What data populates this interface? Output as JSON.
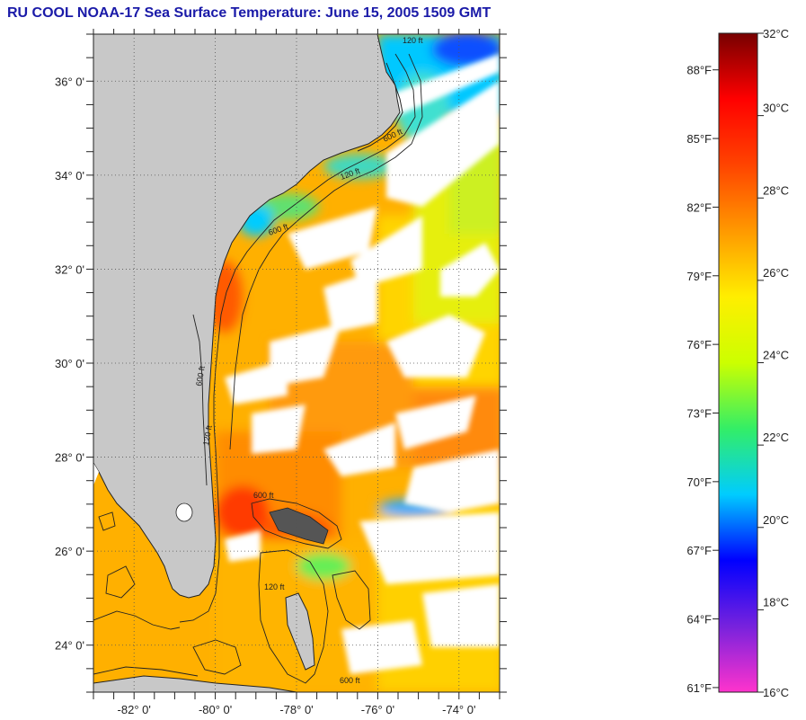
{
  "title": "RU COOL  NOAA-17  Sea Surface Temperature:  June 15, 2005 1509 GMT",
  "map": {
    "lon_range": [
      -83,
      -73
    ],
    "lat_range": [
      23,
      37
    ],
    "lat_ticks": [
      {
        "value": 24,
        "label": "24° 0'"
      },
      {
        "value": 26,
        "label": "26° 0'"
      },
      {
        "value": 28,
        "label": "28° 0'"
      },
      {
        "value": 30,
        "label": "30° 0'"
      },
      {
        "value": 32,
        "label": "32° 0'"
      },
      {
        "value": 34,
        "label": "34° 0'"
      },
      {
        "value": 36,
        "label": "36° 0'"
      }
    ],
    "lon_ticks": [
      {
        "value": -82,
        "label": "-82° 0'"
      },
      {
        "value": -80,
        "label": "-80° 0'"
      },
      {
        "value": -78,
        "label": "-78° 0'"
      },
      {
        "value": -76,
        "label": "-76° 0'"
      },
      {
        "value": -74,
        "label": "-74° 0'"
      }
    ],
    "isobath_labels": [
      "120 ft",
      "600 ft",
      "120 ft",
      "600 ft",
      "600 ft",
      "120 ft",
      "600 ft",
      "120 ft",
      "600 ft"
    ],
    "colors": {
      "land": "#c8c8c8",
      "cloud": "#ffffff",
      "coast": "#222222",
      "grid": "#555555"
    }
  },
  "colorbar": {
    "celsius_labels": [
      "32°C",
      "30°C",
      "28°C",
      "26°C",
      "24°C",
      "22°C",
      "20°C",
      "18°C",
      "16°C"
    ],
    "fahrenheit_labels": [
      "88°F",
      "85°F",
      "82°F",
      "79°F",
      "76°F",
      "73°F",
      "70°F",
      "67°F",
      "64°F",
      "61°F"
    ],
    "celsius_range": [
      16,
      32
    ],
    "stops": [
      "#ff33cc",
      "#7722dd",
      "#0000ff",
      "#00ccff",
      "#33ee66",
      "#ccff00",
      "#ffee00",
      "#ff9900",
      "#ff4400",
      "#ff0000",
      "#770000"
    ]
  }
}
